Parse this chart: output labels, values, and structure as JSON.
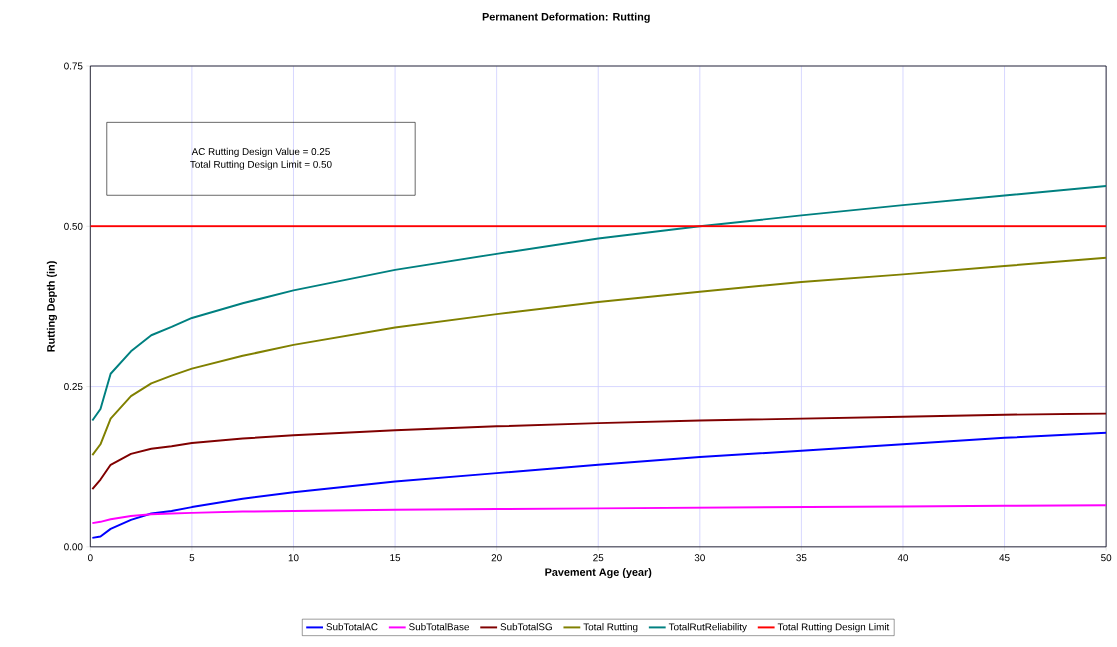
{
  "chart_data": {
    "type": "line",
    "title": "Permanent Deformation: Rutting",
    "xlabel": "Pavement Age (year)",
    "ylabel": "Rutting Depth (in)",
    "xlim": [
      0,
      50
    ],
    "xticks": [
      0,
      5,
      10,
      15,
      20,
      25,
      30,
      35,
      40,
      45,
      50
    ],
    "ylim": [
      0,
      0.75
    ],
    "yticks": [
      {
        "value": 0,
        "label": "0.00"
      },
      {
        "value": 0.25,
        "label": "0.25"
      },
      {
        "value": 0.5,
        "label": "0.50"
      },
      {
        "value": 0.75,
        "label": "0.75"
      }
    ],
    "grid": true,
    "legend": "bottom",
    "line_style": "solid",
    "annotations": [
      "AC Rutting Design Value = 0.25",
      "Total Rutting Design Limit = 0.50"
    ],
    "x": [
      0.1,
      0.5,
      1,
      2,
      3,
      4,
      5,
      7.5,
      10,
      15,
      20,
      25,
      30,
      35,
      40,
      45,
      50
    ],
    "series": [
      {
        "name": "SubTotalAC",
        "color": "#0000ff",
        "values": [
          0.014,
          0.016,
          0.028,
          0.042,
          0.052,
          0.056,
          0.062,
          0.075,
          0.085,
          0.102,
          0.115,
          0.128,
          0.14,
          0.15,
          0.16,
          0.17,
          0.178
        ]
      },
      {
        "name": "SubTotalBase",
        "color": "#ff00ff",
        "values": [
          0.037,
          0.039,
          0.043,
          0.048,
          0.051,
          0.052,
          0.053,
          0.055,
          0.056,
          0.058,
          0.059,
          0.06,
          0.061,
          0.062,
          0.063,
          0.064,
          0.065
        ]
      },
      {
        "name": "SubTotalSG",
        "color": "#800000",
        "values": [
          0.09,
          0.105,
          0.128,
          0.145,
          0.153,
          0.157,
          0.162,
          0.169,
          0.174,
          0.182,
          0.188,
          0.193,
          0.197,
          0.2,
          0.203,
          0.206,
          0.208
        ]
      },
      {
        "name": "Total Rutting",
        "color": "#808000",
        "values": [
          0.143,
          0.16,
          0.2,
          0.235,
          0.255,
          0.267,
          0.278,
          0.298,
          0.315,
          0.342,
          0.363,
          0.382,
          0.398,
          0.413,
          0.425,
          0.438,
          0.451
        ]
      },
      {
        "name": "TotalRutReliability",
        "color": "#008080",
        "values": [
          0.197,
          0.215,
          0.27,
          0.305,
          0.33,
          0.343,
          0.357,
          0.38,
          0.4,
          0.432,
          0.457,
          0.481,
          0.5,
          0.517,
          0.533,
          0.548,
          0.563
        ]
      },
      {
        "name": "Total Rutting Design Limit",
        "color": "#ff0000",
        "x": [
          0,
          50
        ],
        "values": [
          0.5,
          0.5
        ]
      }
    ]
  }
}
